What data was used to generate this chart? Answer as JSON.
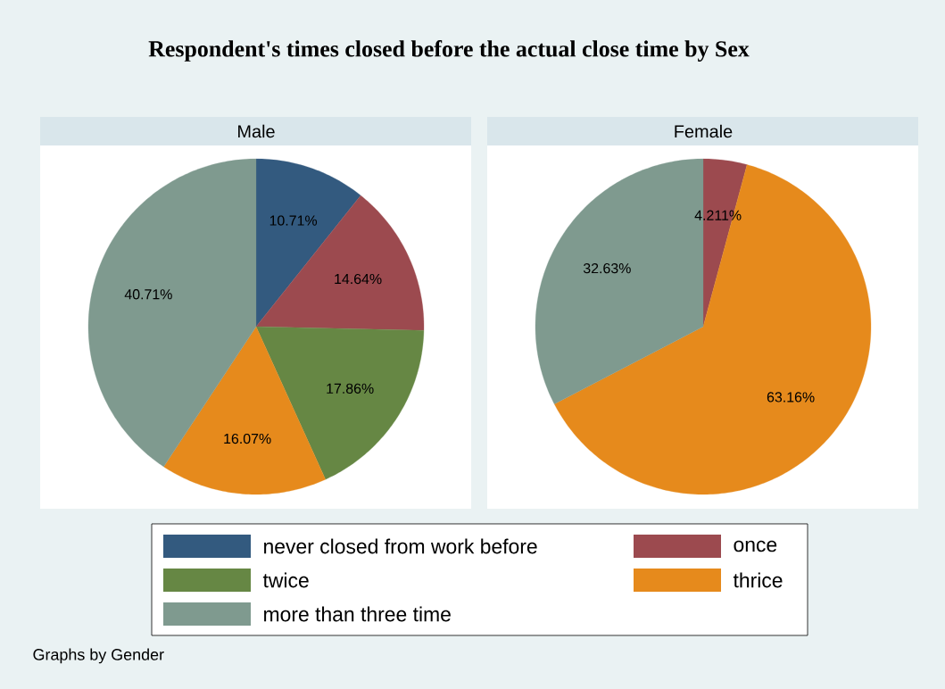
{
  "chart_data": [
    {
      "type": "other",
      "title": "Respondent's times closed before the actual close time by Sex",
      "annotations": [
        "Graphs by Gender"
      ]
    },
    {
      "type": "pie",
      "title": "Male",
      "categories": [
        "never closed from work before",
        "once",
        "twice",
        "thrice",
        "more than three time"
      ],
      "values": [
        10.71,
        14.64,
        17.86,
        16.07,
        40.71
      ],
      "value_labels": [
        "10.71%",
        "14.64%",
        "17.86%",
        "16.07%",
        "40.71%"
      ],
      "colors": [
        "#335a7f",
        "#9c4a4f",
        "#668744",
        "#e68a1c",
        "#7f9a8f"
      ],
      "legend": "bottom"
    },
    {
      "type": "pie",
      "title": "Female",
      "values": [
        null,
        4.211,
        null,
        63.16,
        32.63
      ],
      "value_labels": [
        null,
        "4.211%",
        null,
        "63.16%",
        "32.63%"
      ],
      "colors": [
        "#335a7f",
        "#9c4a4f",
        "#668744",
        "#e68a1c",
        "#7f9a8f"
      ]
    }
  ]
}
